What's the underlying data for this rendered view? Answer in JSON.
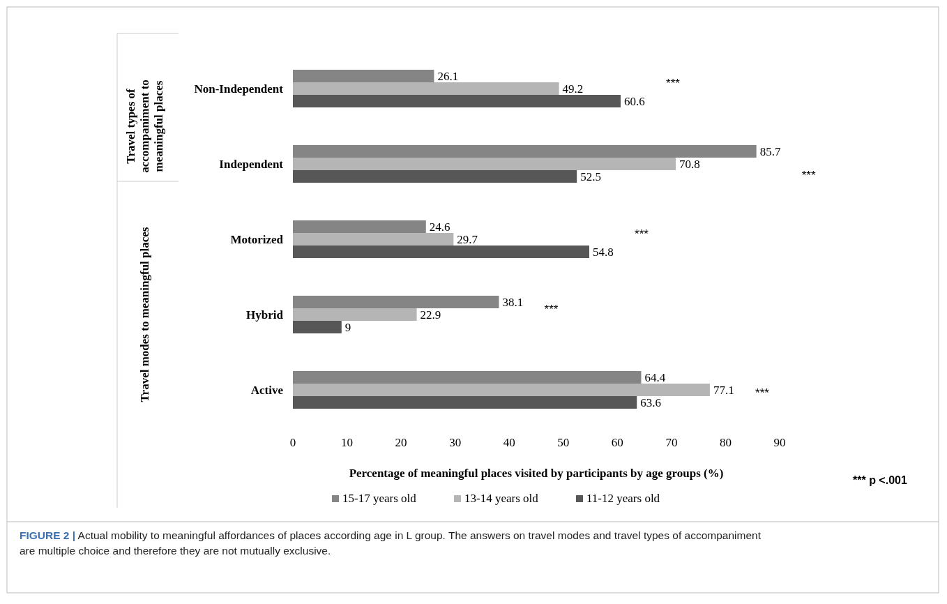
{
  "chart_data": {
    "type": "bar",
    "orientation": "horizontal",
    "xlabel": "Percentage of meaningful places visited by participants by age groups (%)",
    "categories": [
      "Non-Independent",
      "Independent",
      "Motorized",
      "Hybrid",
      "Active"
    ],
    "series": [
      {
        "name": "15-17 years old",
        "color": "#858585",
        "values": [
          26.1,
          85.7,
          24.6,
          38.1,
          64.4
        ]
      },
      {
        "name": "13-14 years old",
        "color": "#b5b5b5",
        "values": [
          49.2,
          70.8,
          29.7,
          22.9,
          77.1
        ]
      },
      {
        "name": "11-12 years old",
        "color": "#575757",
        "values": [
          60.6,
          52.5,
          54.8,
          9,
          63.6
        ]
      }
    ],
    "xlim": [
      0,
      90
    ],
    "xticks": [
      0,
      10,
      20,
      30,
      40,
      50,
      60,
      70,
      80,
      90
    ],
    "data_labels": true,
    "legend": "bottom",
    "annotations": [
      "***",
      "***",
      "***",
      "***",
      "***",
      "Travel types of accompaniment to meaningful places",
      "Travel modes to meaningful places",
      "*** p <.001",
      "FIGURE 2 | Actual mobility to meaningful affordances of places according age in L group. The answers on travel modes and travel types of accompaniment are multiple choice and therefore they are not mutually exclusive."
    ]
  }
}
